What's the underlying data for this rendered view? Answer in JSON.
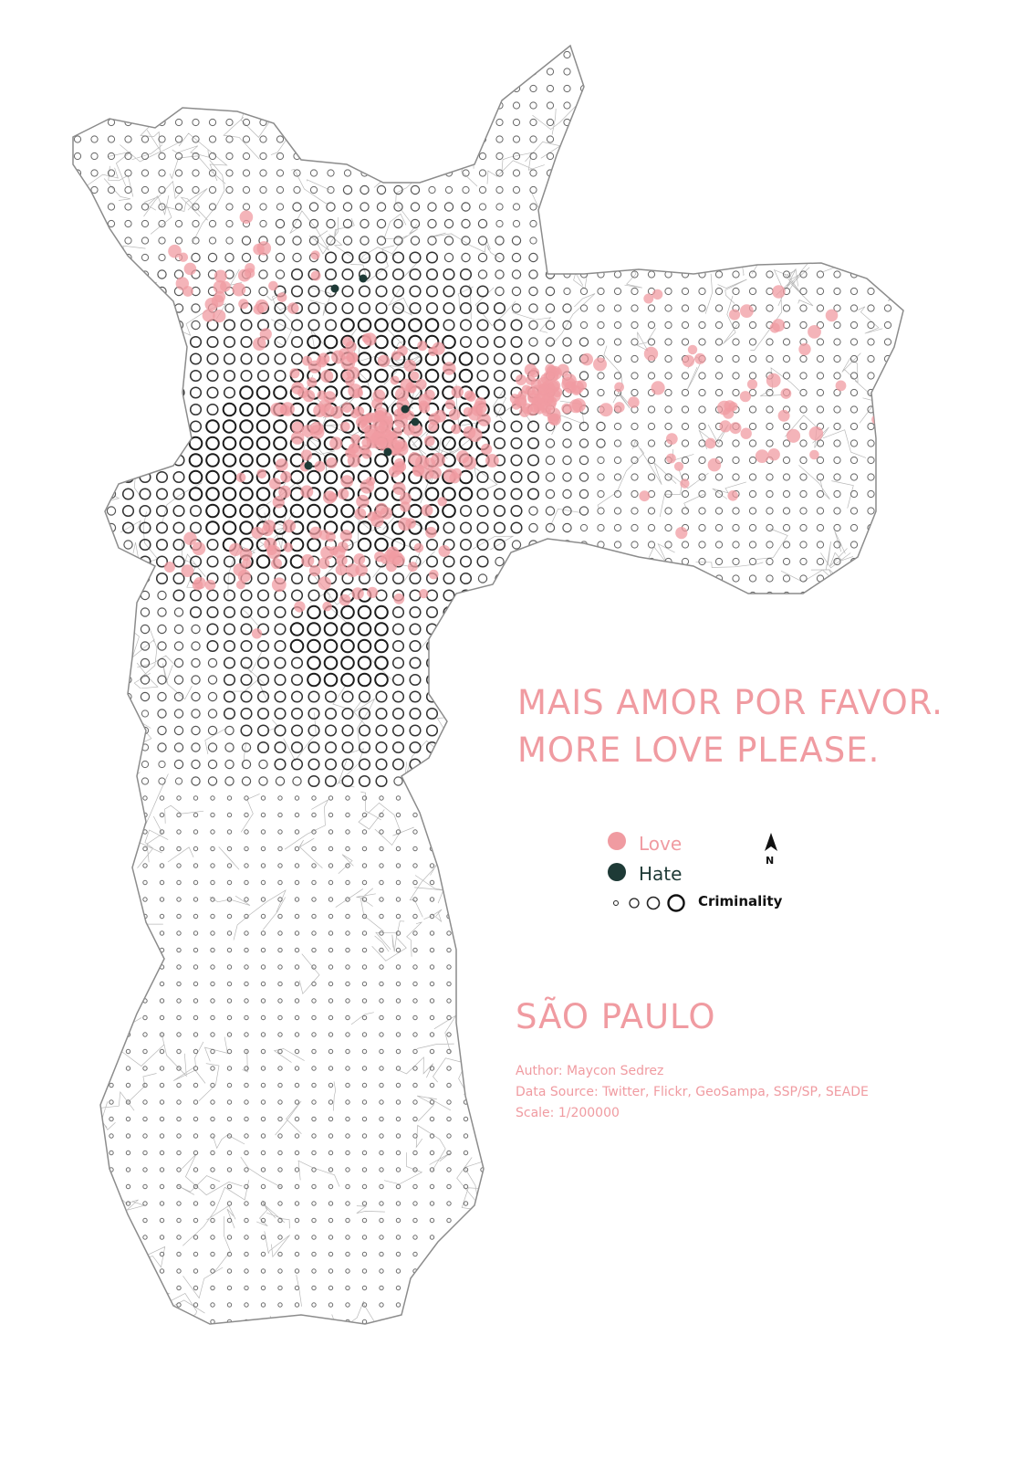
{
  "headline": {
    "portuguese": "MAIS AMOR POR FAVOR.",
    "english": "MORE LOVE PLEASE."
  },
  "legend": {
    "love_label": "Love",
    "hate_label": "Hate",
    "criminality_label": "Criminality",
    "north_label": "N"
  },
  "city_name": "SÃO PAULO",
  "credits": {
    "author": "Author: Maycon Sedrez",
    "data_source": "Data Source: Twitter, Flickr, GeoSampa, SSP/SP, SEADE",
    "scale": "Scale: 1/200000"
  },
  "colors": {
    "love": "#f09ba1",
    "hate": "#1e3a36",
    "criminality": "#222222",
    "roads": "#9a9a9a",
    "text_accent": "#f09ba1"
  }
}
